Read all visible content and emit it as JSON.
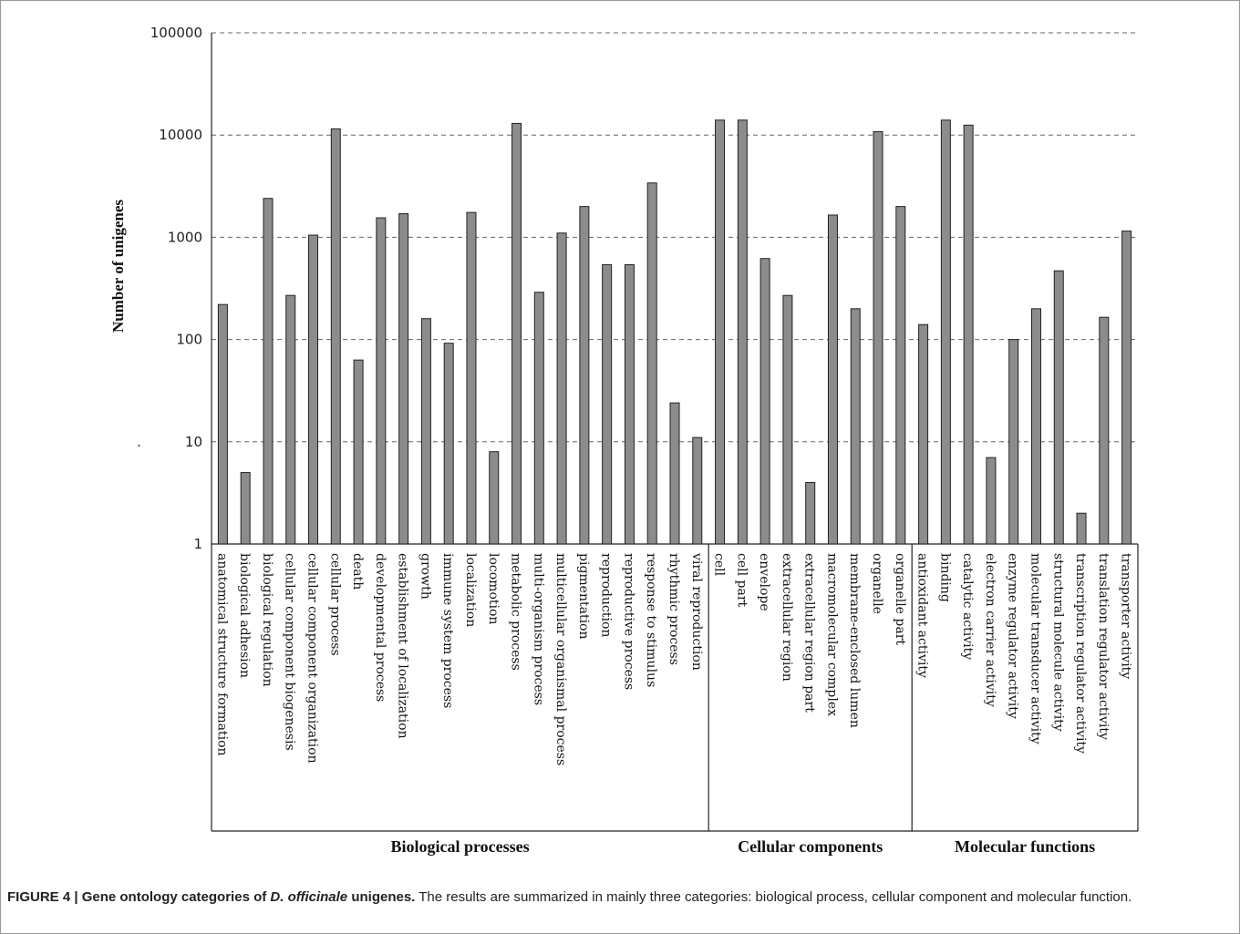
{
  "chart_data": {
    "type": "bar",
    "ylabel": "Number of unigenes",
    "yscale": "log",
    "ylim": [
      1,
      100000
    ],
    "yticks": [
      "1",
      "10",
      "100",
      "1000",
      "10000",
      "100000"
    ],
    "grid": "horizontal dashed",
    "bar_color": "#8c8c8c",
    "categories": [
      "anatomical structure formation",
      "biological adhesion",
      "biological regulation",
      "cellular component biogenesis",
      "cellular component organization",
      "cellular process",
      "death",
      "developmental process",
      "establishment of localization",
      "growth",
      "immune system process",
      "localization",
      "locomotion",
      "metabolic process",
      "multi-organism process",
      "multicellular organismal process",
      "pigmentation",
      "reproduction",
      "reproductive process",
      "response to stimulus",
      "rhythmic process",
      "viral reproduction",
      "cell",
      "cell part",
      "envelope",
      "extracellular region",
      "extracellular region part",
      "macromolecular complex",
      "membrane-enclosed lumen",
      "organelle",
      "organelle part",
      "antioxidant activity",
      "binding",
      "catalytic activity",
      "electron carrier activity",
      "enzyme regulator activity",
      "molecular transducer activity",
      "structural molecule activity",
      "transcription regulator activity",
      "translation regulator activity",
      "transporter activity"
    ],
    "values": [
      220,
      5,
      2400,
      270,
      1050,
      11500,
      63,
      1550,
      1700,
      160,
      92,
      1750,
      8,
      13000,
      290,
      1100,
      2000,
      540,
      540,
      3400,
      24,
      11,
      14000,
      14000,
      620,
      270,
      4,
      1650,
      200,
      10800,
      2000,
      140,
      14000,
      12500,
      7,
      100,
      200,
      470,
      2,
      165,
      1150
    ],
    "groups": [
      {
        "name": "Biological processes",
        "count": 22
      },
      {
        "name": "Cellular components",
        "count": 9
      },
      {
        "name": "Molecular functions",
        "count": 10
      }
    ],
    "stray_mark": "."
  },
  "caption": {
    "label": "FIGURE 4 | Gene ontology categories of ",
    "species": "D. officinale",
    "label_end": " unigenes.",
    "text": " The results are summarized in mainly three categories: biological process, cellular component and molecular function."
  }
}
